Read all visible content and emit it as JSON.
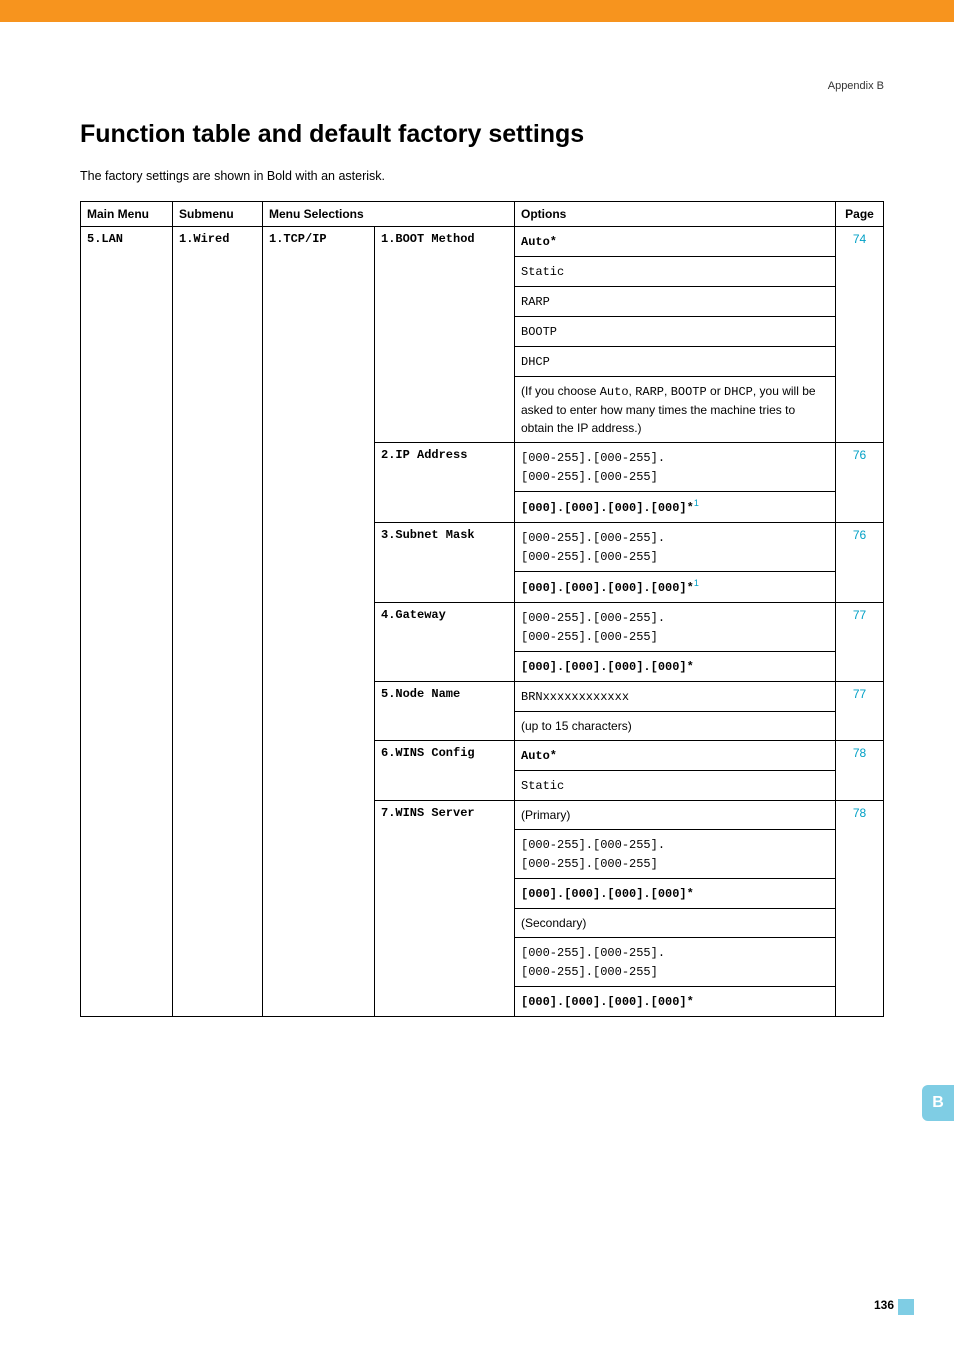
{
  "appendix": "Appendix B",
  "heading": "Function table and default factory settings",
  "intro": "The factory settings are shown in Bold with an asterisk.",
  "headers": {
    "main_menu": "Main Menu",
    "submenu": "Submenu",
    "menu_selections": "Menu Selections",
    "options": "Options",
    "page": "Page"
  },
  "main_menu": "5.LAN",
  "submenu": "1.Wired",
  "selections_col1": "1.TCP/IP",
  "rows": [
    {
      "sel2": "1.BOOT Method",
      "page": "74",
      "options": [
        {
          "type": "mono-bold",
          "text": "Auto*"
        },
        {
          "type": "mono",
          "text": "Static"
        },
        {
          "type": "mono",
          "text": "RARP"
        },
        {
          "type": "mono",
          "text": "BOOTP"
        },
        {
          "type": "mono",
          "text": "DHCP"
        },
        {
          "type": "mixed",
          "parts": [
            {
              "t": "plain",
              "v": "(If you choose "
            },
            {
              "t": "mono",
              "v": "Auto"
            },
            {
              "t": "plain",
              "v": ", "
            },
            {
              "t": "mono",
              "v": "RARP"
            },
            {
              "t": "plain",
              "v": ", "
            },
            {
              "t": "mono",
              "v": "BOOTP"
            },
            {
              "t": "plain",
              "v": " or "
            },
            {
              "t": "mono",
              "v": "DHCP"
            },
            {
              "t": "plain",
              "v": ", you will be asked to enter how many times the machine tries to obtain the IP address.)"
            }
          ]
        }
      ]
    },
    {
      "sel2": "2.IP Address",
      "page": "76",
      "options": [
        {
          "type": "mono",
          "text": "[000-255].[000-255].\n[000-255].[000-255]"
        },
        {
          "type": "mono-bold-sup",
          "text": "[000].[000].[000].[000]*",
          "sup": "1"
        }
      ]
    },
    {
      "sel2": "3.Subnet Mask",
      "page": "76",
      "options": [
        {
          "type": "mono",
          "text": "[000-255].[000-255].\n[000-255].[000-255]"
        },
        {
          "type": "mono-bold-sup",
          "text": "[000].[000].[000].[000]*",
          "sup": "1"
        }
      ]
    },
    {
      "sel2": "4.Gateway",
      "page": "77",
      "options": [
        {
          "type": "mono",
          "text": "[000-255].[000-255].\n[000-255].[000-255]"
        },
        {
          "type": "mono-bold",
          "text": "[000].[000].[000].[000]*"
        }
      ]
    },
    {
      "sel2": "5.Node Name",
      "page": "77",
      "options": [
        {
          "type": "mono",
          "text": "BRNxxxxxxxxxxxx"
        },
        {
          "type": "plain",
          "text": "(up to 15 characters)"
        }
      ]
    },
    {
      "sel2": "6.WINS Config",
      "page": "78",
      "options": [
        {
          "type": "mono-bold",
          "text": "Auto*"
        },
        {
          "type": "mono",
          "text": "Static"
        }
      ]
    },
    {
      "sel2": "7.WINS Server",
      "page": "78",
      "options": [
        {
          "type": "plain",
          "text": "(Primary)"
        },
        {
          "type": "mono",
          "text": "[000-255].[000-255].\n[000-255].[000-255]"
        },
        {
          "type": "mono-bold",
          "text": "[000].[000].[000].[000]*"
        },
        {
          "type": "plain",
          "text": "(Secondary)"
        },
        {
          "type": "mono",
          "text": "[000-255].[000-255].\n[000-255].[000-255]"
        },
        {
          "type": "mono-bold",
          "text": "[000].[000].[000].[000]*"
        }
      ]
    }
  ],
  "side_tab": "B",
  "page_number": "136"
}
